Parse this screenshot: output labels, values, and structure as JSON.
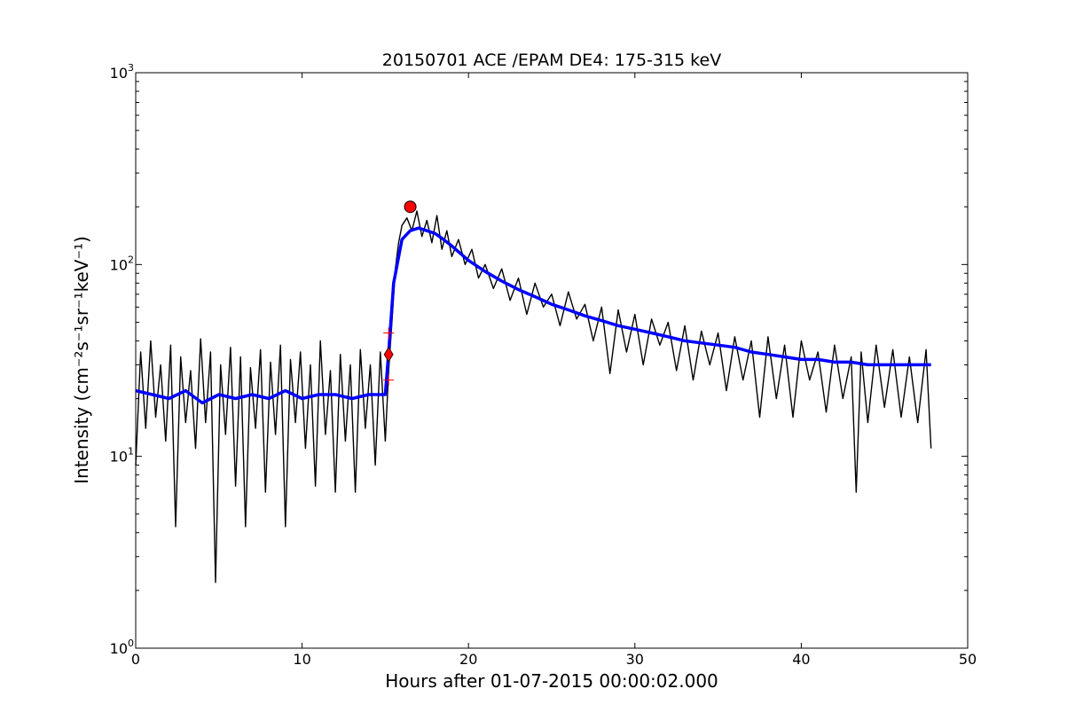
{
  "chart_data": {
    "type": "line",
    "title": "20150701 ACE /EPAM DE4: 175-315 keV",
    "xlabel": "Hours after 01-07-2015 00:00:02.000",
    "ylabel": "Intensity (cm⁻²s⁻¹sr⁻¹keV⁻¹)",
    "xlim": [
      0,
      50
    ],
    "ylim": [
      1,
      1000
    ],
    "y_scale": "log",
    "grid": false,
    "x_ticks": [
      0,
      10,
      20,
      30,
      40,
      50
    ],
    "x_tick_labels": [
      "0",
      "10",
      "20",
      "30",
      "40",
      "50"
    ],
    "y_ticks": [
      1,
      10,
      100,
      1000
    ],
    "y_tick_labels": [
      "10",
      "10",
      "10",
      "10"
    ],
    "y_tick_exponents": [
      "0",
      "1",
      "2",
      "3"
    ],
    "series": [
      {
        "color": "#000000",
        "x": [
          0,
          0.3,
          0.6,
          0.9,
          1.2,
          1.5,
          1.8,
          2.1,
          2.4,
          2.7,
          3.0,
          3.3,
          3.6,
          3.9,
          4.2,
          4.5,
          4.8,
          5.1,
          5.4,
          5.7,
          6.0,
          6.3,
          6.6,
          6.9,
          7.2,
          7.5,
          7.8,
          8.1,
          8.4,
          8.7,
          9.0,
          9.3,
          9.6,
          9.9,
          10.2,
          10.5,
          10.8,
          11.1,
          11.4,
          11.7,
          12.0,
          12.3,
          12.6,
          12.9,
          13.2,
          13.5,
          13.8,
          14.1,
          14.4,
          14.7,
          15.0,
          15.2,
          15.4,
          15.6,
          15.8,
          16.0,
          16.3,
          16.6,
          16.9,
          17.2,
          17.5,
          17.8,
          18.1,
          18.4,
          18.7,
          19.0,
          19.4,
          19.8,
          20.2,
          20.6,
          21.0,
          21.5,
          22.0,
          22.5,
          23.0,
          23.5,
          24.0,
          24.5,
          25.0,
          25.5,
          26.0,
          26.5,
          27.0,
          27.5,
          28.0,
          28.5,
          29.0,
          29.5,
          30.0,
          30.5,
          31.0,
          31.5,
          32.0,
          32.5,
          33.0,
          33.5,
          34.0,
          34.5,
          35.0,
          35.5,
          36.0,
          36.5,
          37.0,
          37.5,
          38.0,
          38.5,
          39.0,
          39.5,
          40.0,
          40.5,
          41.0,
          41.5,
          42.0,
          42.5,
          43.0,
          43.3,
          43.6,
          44.0,
          44.5,
          45.0,
          45.5,
          46.0,
          46.5,
          47.0,
          47.5,
          47.8
        ],
        "y": [
          9,
          35,
          14,
          40,
          16,
          30,
          12,
          38,
          4.3,
          33,
          15,
          28,
          11,
          41,
          15,
          35,
          2.2,
          30,
          13,
          37,
          7,
          33,
          4.3,
          29,
          14,
          36,
          6.5,
          31,
          13,
          38,
          4.3,
          32,
          15,
          35,
          11,
          30,
          7,
          40,
          13,
          28,
          6.5,
          34,
          12,
          30,
          6.5,
          36,
          14,
          30,
          9,
          35,
          12,
          28,
          50,
          95,
          130,
          160,
          175,
          150,
          190,
          140,
          170,
          130,
          180,
          120,
          150,
          110,
          135,
          100,
          120,
          85,
          100,
          75,
          95,
          65,
          85,
          55,
          80,
          60,
          70,
          48,
          72,
          52,
          62,
          40,
          60,
          27,
          58,
          35,
          55,
          30,
          52,
          38,
          50,
          28,
          48,
          25,
          45,
          30,
          44,
          22,
          42,
          25,
          40,
          16,
          42,
          20,
          38,
          16,
          40,
          25,
          35,
          17,
          38,
          20,
          33,
          6.5,
          35,
          15,
          38,
          18,
          36,
          16,
          33,
          15,
          36,
          11
        ]
      },
      {
        "color": "#0000ff",
        "x": [
          0,
          1,
          2,
          3,
          4,
          5,
          6,
          7,
          8,
          9,
          10,
          11,
          12,
          13,
          14,
          15,
          15.2,
          15.5,
          16,
          16.5,
          17,
          17.5,
          18,
          18.5,
          19,
          20,
          21,
          22,
          23,
          24,
          25,
          26,
          27,
          28,
          29,
          30,
          31,
          32,
          33,
          34,
          35,
          36,
          37,
          38,
          39,
          40,
          41,
          42,
          43,
          44,
          45,
          46,
          47,
          47.8
        ],
        "y": [
          22,
          21,
          20,
          22,
          19,
          21,
          20,
          21,
          20,
          22,
          20,
          21,
          21,
          20,
          21,
          21,
          35,
          80,
          135,
          150,
          155,
          150,
          145,
          135,
          125,
          105,
          92,
          82,
          74,
          68,
          62,
          58,
          54,
          51,
          48,
          46,
          44,
          42,
          40,
          39,
          38,
          37,
          35,
          34,
          33,
          32,
          32,
          31,
          31,
          30,
          30,
          30,
          30,
          30
        ]
      }
    ],
    "markers": [
      {
        "label": "",
        "shape": "circle",
        "color": "#ff0000",
        "x": 16.5,
        "y": 200
      },
      {
        "label": "",
        "shape": "diamond",
        "color": "#ff0000",
        "x": 15.2,
        "y": 34
      },
      {
        "label": "",
        "shape": "plus",
        "color": "#ff0000",
        "x": 15.2,
        "y": 44
      },
      {
        "label": "",
        "shape": "plus",
        "color": "#ff0000",
        "x": 15.2,
        "y": 25
      }
    ]
  }
}
